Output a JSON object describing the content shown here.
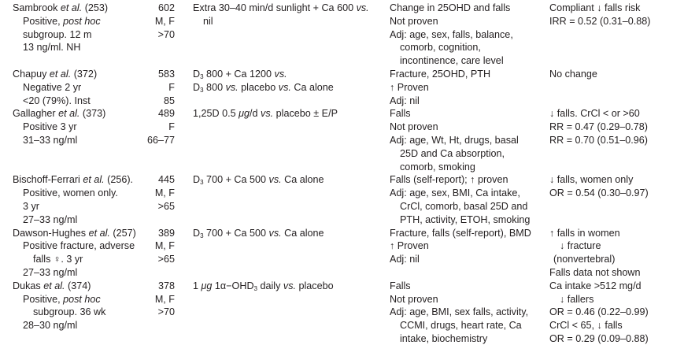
{
  "table": {
    "rows": [
      {
        "start": 0,
        "study": [
          {
            "indent": 0,
            "seg": [
              "Sambrook ",
              {
                "i": "et al."
              },
              " (253)"
            ]
          },
          {
            "indent": 1,
            "seg": [
              "Positive, ",
              {
                "i": "post hoc"
              }
            ]
          },
          {
            "indent": 1,
            "seg": [
              "subgroup. 12 m"
            ]
          },
          {
            "indent": 1,
            "seg": [
              "13 ng/ml. NH"
            ]
          }
        ],
        "n": [
          "602",
          "M, F",
          ">70"
        ],
        "intervention": [
          {
            "indent": 0,
            "seg": [
              "Extra 30–40 min/d sunlight + Ca 600 ",
              {
                "i": "vs."
              }
            ]
          },
          {
            "indent": 1,
            "seg": [
              "nil"
            ]
          }
        ],
        "outcome": [
          {
            "indent": 0,
            "seg": [
              "Change in 25OHD and falls"
            ]
          },
          {
            "indent": 0,
            "seg": [
              "Not proven"
            ]
          },
          {
            "indent": 0,
            "seg": [
              "Adj: age, sex, falls, balance,"
            ]
          },
          {
            "indent": 1,
            "seg": [
              "comorb, cognition,"
            ]
          },
          {
            "indent": 1,
            "seg": [
              "incontinence, care level"
            ]
          }
        ],
        "result": [
          {
            "indent": 0,
            "seg": [
              "Compliant ↓ falls risk"
            ]
          },
          {
            "indent": 0,
            "seg": [
              "IRR = 0.52 (0.31–0.88)"
            ]
          }
        ]
      },
      {
        "start": 5,
        "study": [
          {
            "indent": 0,
            "seg": [
              "Chapuy ",
              {
                "i": "et al."
              },
              " (372)"
            ]
          },
          {
            "indent": 1,
            "seg": [
              "Negative 2 yr"
            ]
          },
          {
            "indent": 1,
            "seg": [
              "<20 (79%). Inst"
            ]
          }
        ],
        "n": [
          "583",
          "F",
          "85"
        ],
        "intervention": [
          {
            "indent": 0,
            "seg": [
              "D",
              {
                "sub": "3"
              },
              " 800 + Ca 1200 ",
              {
                "i": "vs."
              }
            ]
          },
          {
            "indent": 0,
            "seg": [
              "D",
              {
                "sub": "3"
              },
              " 800 ",
              {
                "i": "vs."
              },
              " placebo ",
              {
                "i": "vs."
              },
              " Ca alone"
            ]
          }
        ],
        "outcome": [
          {
            "indent": 0,
            "seg": [
              "Fracture, 25OHD, PTH"
            ]
          },
          {
            "indent": 0,
            "seg": [
              "↑ Proven"
            ]
          },
          {
            "indent": 0,
            "seg": [
              "Adj: nil"
            ]
          }
        ],
        "result": [
          {
            "indent": 0,
            "seg": [
              "No change"
            ]
          }
        ]
      },
      {
        "start": 8,
        "study": [
          {
            "indent": 0,
            "seg": [
              "Gallagher ",
              {
                "i": "et al."
              },
              " (373)"
            ]
          },
          {
            "indent": 1,
            "seg": [
              "Positive 3 yr"
            ]
          },
          {
            "indent": 1,
            "seg": [
              "31–33 ng/ml"
            ]
          }
        ],
        "n": [
          "489",
          "F",
          "66–77"
        ],
        "intervention": [
          {
            "indent": 0,
            "seg": [
              "1,25D 0.5 ",
              {
                "i": "μg"
              },
              "/d ",
              {
                "i": "vs."
              },
              " placebo ± E/P"
            ]
          }
        ],
        "outcome": [
          {
            "indent": 0,
            "seg": [
              "Falls"
            ]
          },
          {
            "indent": 0,
            "seg": [
              "Not proven"
            ]
          },
          {
            "indent": 0,
            "seg": [
              "Adj: age, Wt, Ht, drugs, basal"
            ]
          },
          {
            "indent": 1,
            "seg": [
              "25D and Ca absorption,"
            ]
          },
          {
            "indent": 1,
            "seg": [
              "comorb, smoking"
            ]
          }
        ],
        "result": [
          {
            "indent": 0,
            "seg": [
              "↓ falls. CrCl < or >60"
            ]
          },
          {
            "indent": 0,
            "seg": [
              "RR = 0.47 (0.29–0.78)"
            ]
          },
          {
            "indent": 0,
            "seg": [
              "RR = 0.70 (0.51–0.96)"
            ]
          }
        ]
      },
      {
        "start": 13,
        "study": [
          {
            "indent": 0,
            "seg": [
              "Bischoff-Ferrari ",
              {
                "i": "et al."
              },
              " (256)."
            ]
          },
          {
            "indent": 1,
            "seg": [
              "Positive, women only."
            ]
          },
          {
            "indent": 1,
            "seg": [
              "3 yr"
            ]
          },
          {
            "indent": 1,
            "seg": [
              "27–33 ng/ml"
            ]
          }
        ],
        "n": [
          "445",
          "M, F",
          ">65"
        ],
        "intervention": [
          {
            "indent": 0,
            "seg": [
              "D",
              {
                "sub": "3"
              },
              " 700 + Ca 500 ",
              {
                "i": "vs."
              },
              " Ca alone"
            ]
          }
        ],
        "outcome": [
          {
            "indent": 0,
            "seg": [
              "Falls (self-report); ↑ proven"
            ]
          },
          {
            "indent": 0,
            "seg": [
              "Adj: age, sex, BMI, Ca intake,"
            ]
          },
          {
            "indent": 1,
            "seg": [
              "CrCl, comorb, basal 25D and"
            ]
          },
          {
            "indent": 1,
            "seg": [
              "PTH, activity, ETOH, smoking"
            ]
          }
        ],
        "result": [
          {
            "indent": 0,
            "seg": [
              "↓ falls, women only"
            ]
          },
          {
            "indent": 0,
            "seg": [
              "OR = 0.54 (0.30–0.97)"
            ]
          }
        ]
      },
      {
        "start": 17,
        "study": [
          {
            "indent": 0,
            "seg": [
              "Dawson-Hughes ",
              {
                "i": "et al."
              },
              " (257)"
            ]
          },
          {
            "indent": 1,
            "seg": [
              "Positive fracture, adverse"
            ]
          },
          {
            "indent": 2,
            "seg": [
              "falls ♀. 3 yr"
            ]
          },
          {
            "indent": 1,
            "seg": [
              "27–33 ng/ml"
            ]
          }
        ],
        "n": [
          "389",
          "M, F",
          ">65"
        ],
        "intervention": [
          {
            "indent": 0,
            "seg": [
              "D",
              {
                "sub": "3"
              },
              " 700 + Ca 500 ",
              {
                "i": "vs."
              },
              " Ca alone"
            ]
          }
        ],
        "outcome": [
          {
            "indent": 0,
            "seg": [
              "Fracture, falls (self-report), BMD"
            ]
          },
          {
            "indent": 0,
            "seg": [
              "↑ Proven"
            ]
          },
          {
            "indent": 0,
            "seg": [
              "Adj: nil"
            ]
          }
        ],
        "result": [
          {
            "indent": 0,
            "seg": [
              "↑ falls in women"
            ]
          },
          {
            "indent": 1,
            "seg": [
              "↓ fracture"
            ]
          },
          {
            "indent": 3,
            "seg": [
              "(nonvertebral)"
            ]
          },
          {
            "indent": 0,
            "seg": [
              "Falls data not shown"
            ]
          }
        ]
      },
      {
        "start": 21,
        "study": [
          {
            "indent": 0,
            "seg": [
              "Dukas ",
              {
                "i": "et al."
              },
              " (374)"
            ]
          },
          {
            "indent": 1,
            "seg": [
              "Positive, ",
              {
                "i": "post hoc"
              }
            ]
          },
          {
            "indent": 2,
            "seg": [
              "subgroup. 36 wk"
            ]
          },
          {
            "indent": 1,
            "seg": [
              "28–30 ng/ml"
            ]
          }
        ],
        "n": [
          "378",
          "M, F",
          ">70"
        ],
        "intervention": [
          {
            "indent": 0,
            "seg": [
              "1 ",
              {
                "i": "μg"
              },
              " 1α−OHD",
              {
                "sub": "3"
              },
              " daily ",
              {
                "i": "vs."
              },
              " placebo"
            ]
          }
        ],
        "outcome": [
          {
            "indent": 0,
            "seg": [
              "Falls"
            ]
          },
          {
            "indent": 0,
            "seg": [
              "Not proven"
            ]
          },
          {
            "indent": 0,
            "seg": [
              "Adj: age, BMI, sex falls, activity,"
            ]
          },
          {
            "indent": 1,
            "seg": [
              "CCMI, drugs, heart rate, Ca"
            ]
          },
          {
            "indent": 1,
            "seg": [
              "intake, biochemistry"
            ]
          }
        ],
        "result": [
          {
            "indent": 0,
            "seg": [
              "Ca intake >512 mg/d"
            ]
          },
          {
            "indent": 1,
            "seg": [
              "↓ fallers"
            ]
          },
          {
            "indent": 0,
            "seg": [
              "OR = 0.46 (0.22–0.99)"
            ]
          },
          {
            "indent": 0,
            "seg": [
              "CrCl < 65, ↓ falls"
            ]
          },
          {
            "indent": 0,
            "seg": [
              "OR = 0.29 (0.09–0.88)"
            ]
          }
        ]
      }
    ]
  }
}
